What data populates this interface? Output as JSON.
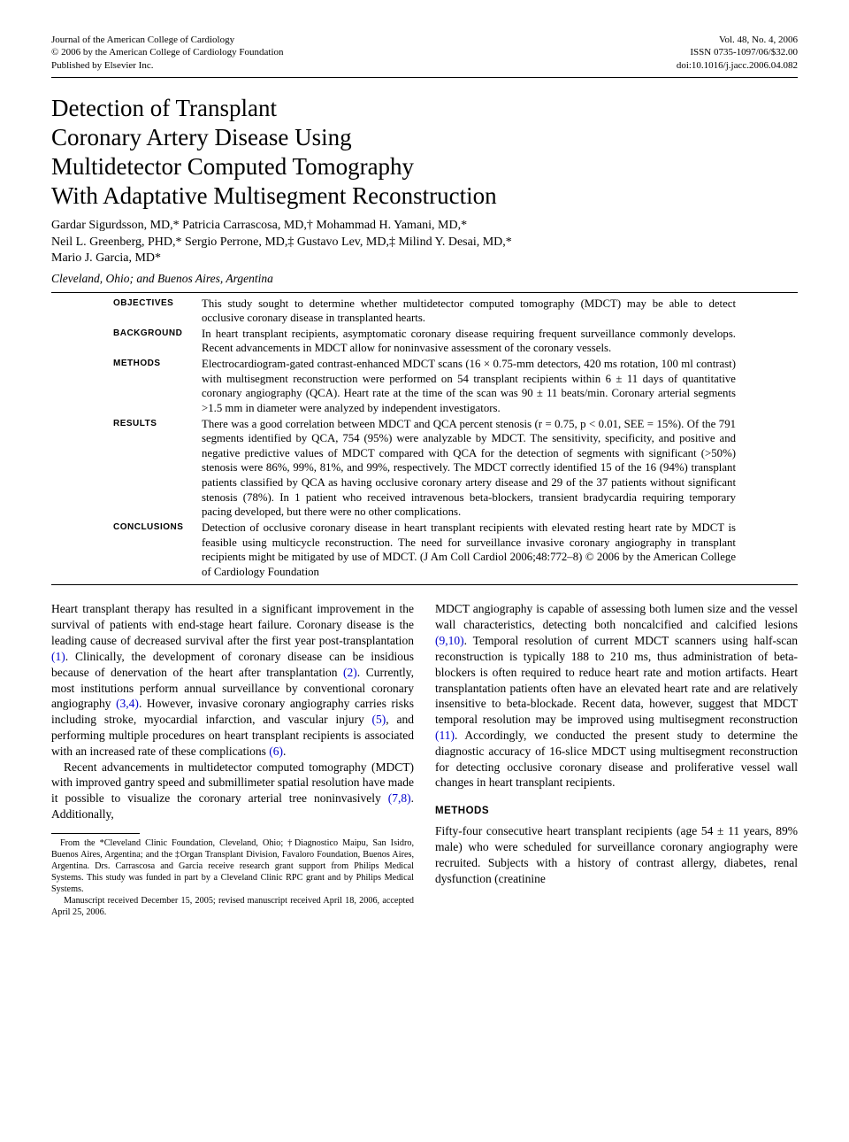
{
  "header": {
    "journal_line1": "Journal of the American College of Cardiology",
    "journal_line2": "© 2006 by the American College of Cardiology Foundation",
    "journal_line3": "Published by Elsevier Inc.",
    "vol_line": "Vol. 48, No. 4, 2006",
    "issn_line": "ISSN 0735-1097/06/$32.00",
    "doi_line": "doi:10.1016/j.jacc.2006.04.082"
  },
  "title": "Detection of Transplant\nCoronary Artery Disease Using\nMultidetector Computed Tomography\nWith Adaptative Multisegment Reconstruction",
  "authors": "Gardar Sigurdsson, MD,* Patricia Carrascosa, MD,† Mohammad H. Yamani, MD,*\nNeil L. Greenberg, PHD,* Sergio Perrone, MD,‡ Gustavo Lev, MD,‡ Milind Y. Desai, MD,*\nMario J. Garcia, MD*",
  "affiliations": "Cleveland, Ohio; and Buenos Aires, Argentina",
  "abstract": {
    "objectives": "This study sought to determine whether multidetector computed tomography (MDCT) may be able to detect occlusive coronary disease in transplanted hearts.",
    "background": "In heart transplant recipients, asymptomatic coronary disease requiring frequent surveillance commonly develops. Recent advancements in MDCT allow for noninvasive assessment of the coronary vessels.",
    "methods": "Electrocardiogram-gated contrast-enhanced MDCT scans (16 × 0.75-mm detectors, 420 ms rotation, 100 ml contrast) with multisegment reconstruction were performed on 54 transplant recipients within 6 ± 11 days of quantitative coronary angiography (QCA). Heart rate at the time of the scan was 90 ± 11 beats/min. Coronary arterial segments >1.5 mm in diameter were analyzed by independent investigators.",
    "results": "There was a good correlation between MDCT and QCA percent stenosis (r = 0.75, p < 0.01, SEE = 15%). Of the 791 segments identified by QCA, 754 (95%) were analyzable by MDCT. The sensitivity, specificity, and positive and negative predictive values of MDCT compared with QCA for the detection of segments with significant (>50%) stenosis were 86%, 99%, 81%, and 99%, respectively. The MDCT correctly identified 15 of the 16 (94%) transplant patients classified by QCA as having occlusive coronary artery disease and 29 of the 37 patients without significant stenosis (78%). In 1 patient who received intravenous beta-blockers, transient bradycardia requiring temporary pacing developed, but there were no other complications.",
    "conclusions": "Detection of occlusive coronary disease in heart transplant recipients with elevated resting heart rate by MDCT is feasible using multicycle reconstruction. The need for surveillance invasive coronary angiography in transplant recipients might be mitigated by use of MDCT.  (J Am Coll Cardiol 2006;48:772–8) © 2006 by the American College of Cardiology Foundation"
  },
  "body": {
    "p1a": "Heart transplant therapy has resulted in a significant improvement in the survival of patients with end-stage heart failure. Coronary disease is the leading cause of decreased survival after the first year post-transplantation ",
    "ref1": "(1)",
    "p1b": ". Clinically, the development of coronary disease can be insidious because of denervation of the heart after transplantation ",
    "ref2": "(2)",
    "p1c": ". Currently, most institutions perform annual surveillance by conventional coronary angiography ",
    "ref34": "(3,4)",
    "p1d": ". However, invasive coronary angiography carries risks including stroke, myocardial infarction, and vascular injury ",
    "ref5": "(5)",
    "p1e": ", and performing multiple procedures on heart transplant recipients is associated with an increased rate of these complications ",
    "ref6": "(6)",
    "p1f": ".",
    "p2a": "Recent advancements in multidetector computed tomography (MDCT) with improved gantry speed and submillimeter spatial resolution have made it possible to visualize the coronary arterial tree noninvasively ",
    "ref78": "(7,8)",
    "p2b": ". Additionally,",
    "p3a": "MDCT angiography is capable of assessing both lumen size and the vessel wall characteristics, detecting both noncalcified and calcified lesions ",
    "ref910": "(9,10)",
    "p3b": ". Temporal resolution of current MDCT scanners using half-scan reconstruction is typically 188 to 210 ms, thus administration of beta-blockers is often required to reduce heart rate and motion artifacts. Heart transplantation patients often have an elevated heart rate and are relatively insensitive to beta-blockade. Recent data, however, suggest that MDCT temporal resolution may be improved using multisegment reconstruction ",
    "ref11": "(11)",
    "p3c": ". Accordingly, we conducted the present study to determine the diagnostic accuracy of 16-slice MDCT using multisegment reconstruction for detecting occlusive coronary disease and proliferative vessel wall changes in heart transplant recipients.",
    "methods_head": "METHODS",
    "methods_p1": "Fifty-four consecutive heart transplant recipients (age 54 ± 11 years, 89% male) who were scheduled for surveillance coronary angiography were recruited. Subjects with a history of contrast allergy, diabetes, renal dysfunction (creatinine"
  },
  "footnotes": {
    "f1": "From the *Cleveland Clinic Foundation, Cleveland, Ohio; †Diagnostico Maipu, San Isidro, Buenos Aires, Argentina; and the ‡Organ Transplant Division, Favaloro Foundation, Buenos Aires, Argentina. Drs. Carrascosa and Garcia receive research grant support from Philips Medical Systems. This study was funded in part by a Cleveland Clinic RPC grant and by Philips Medical Systems.",
    "f2": "Manuscript received December 15, 2005; revised manuscript received April 18, 2006, accepted April 25, 2006."
  },
  "labels": {
    "objectives": "OBJECTIVES",
    "background": "BACKGROUND",
    "methods": "METHODS",
    "results": "RESULTS",
    "conclusions": "CONCLUSIONS"
  }
}
